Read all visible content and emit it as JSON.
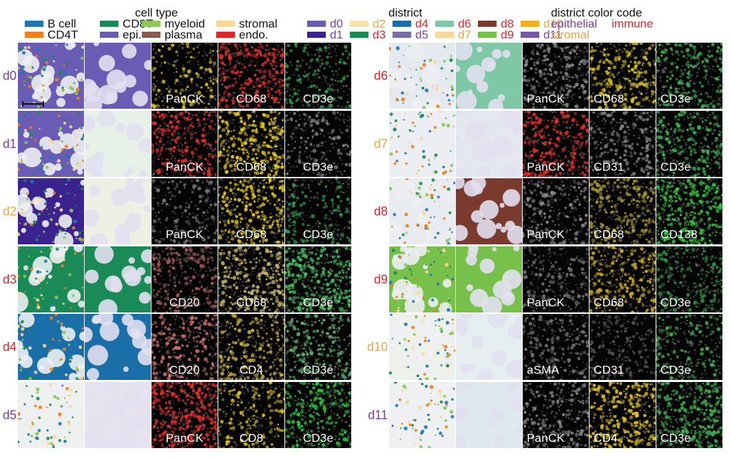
{
  "legends": {
    "cell_type": {
      "title": "cell type",
      "items": [
        {
          "label": "B cell",
          "color": "#1f77b4"
        },
        {
          "label": "CD8T",
          "color": "#1a8a57"
        },
        {
          "label": "myeloid",
          "color": "#8cc75a"
        },
        {
          "label": "stromal",
          "color": "#f6d89a"
        },
        {
          "label": "CD4T",
          "color": "#f07f1b"
        },
        {
          "label": "epi.",
          "color": "#6a5bb5"
        },
        {
          "label": "plasma",
          "color": "#8b5a4a"
        },
        {
          "label": "endo.",
          "color": "#e0252b"
        }
      ]
    },
    "district": {
      "title": "district",
      "items": [
        {
          "label": "d0",
          "color": "#6a5bb5",
          "text_color": "#7a3fa0"
        },
        {
          "label": "d2",
          "color": "#f6e1ac",
          "text_color": "#f0a640"
        },
        {
          "label": "d4",
          "color": "#1a6fa8",
          "text_color": "#e0252b"
        },
        {
          "label": "d6",
          "color": "#7ec8a6",
          "text_color": "#e0252b"
        },
        {
          "label": "d8",
          "color": "#7b3a2e",
          "text_color": "#e0252b"
        },
        {
          "label": "d10",
          "color": "#f0b020",
          "text_color": "#f0a640"
        },
        {
          "label": "d1",
          "color": "#3b238f",
          "text_color": "#7a3fa0"
        },
        {
          "label": "d3",
          "color": "#1a8a57",
          "text_color": "#e0252b"
        },
        {
          "label": "d5",
          "color": "#7a6bab",
          "text_color": "#7a3fa0"
        },
        {
          "label": "d7",
          "color": "#f6d89a",
          "text_color": "#f0a640"
        },
        {
          "label": "d9",
          "color": "#77c04a",
          "text_color": "#e0252b"
        },
        {
          "label": "d11",
          "color": "#7a58a8",
          "text_color": "#7a3fa0"
        }
      ]
    },
    "district_color_code": {
      "title": "district color code",
      "items": [
        {
          "label": "epithelial",
          "color": "#7a3fa0"
        },
        {
          "label": "immune",
          "color": "#e0252b"
        },
        {
          "label": "stromal",
          "color": "#f0a640"
        }
      ]
    }
  },
  "left_panel": {
    "rows": [
      {
        "label": "d0",
        "label_color": "#7a3fa0",
        "celltype_bg": "#6a5bb5",
        "district_bg": "#6a5bb5",
        "markers": [
          {
            "name": "PanCK",
            "tint": "#d8c020",
            "intensity": 0.25
          },
          {
            "name": "CD68",
            "tint": "#e0302b",
            "intensity": 0.7
          },
          {
            "name": "CD3e",
            "tint": "#2fa050",
            "intensity": 0.25
          }
        ]
      },
      {
        "label": "d1",
        "label_color": "#7a3fa0",
        "celltype_bg": "#6a5bb5",
        "district_bg": "#e8f1e8",
        "markers": [
          {
            "name": "PanCK",
            "tint": "#e0302b",
            "intensity": 0.55
          },
          {
            "name": "CD68",
            "tint": "#e6c820",
            "intensity": 0.7
          },
          {
            "name": "CD3e",
            "tint": "#888888",
            "intensity": 0.2
          }
        ]
      },
      {
        "label": "d2",
        "label_color": "#f0a640",
        "celltype_bg": "#3b238f",
        "district_bg": "#eef0e4",
        "markers": [
          {
            "name": "PanCK",
            "tint": "#777777",
            "intensity": 0.15
          },
          {
            "name": "CD68",
            "tint": "#e6c820",
            "intensity": 0.6
          },
          {
            "name": "CD3e",
            "tint": "#2fa050",
            "intensity": 0.25
          }
        ]
      },
      {
        "label": "d3",
        "label_color": "#e0252b",
        "celltype_bg": "#1a8a57",
        "district_bg": "#1a8a57",
        "markers": [
          {
            "name": "CD20",
            "tint": "#b06060",
            "intensity": 0.4
          },
          {
            "name": "CD68",
            "tint": "#c8b868",
            "intensity": 0.7
          },
          {
            "name": "CD3e",
            "tint": "#48c060",
            "intensity": 0.8
          }
        ]
      },
      {
        "label": "d4",
        "label_color": "#e0252b",
        "celltype_bg": "#1a6fa8",
        "district_bg": "#1a6fa8",
        "markers": [
          {
            "name": "CD20",
            "tint": "#d07070",
            "intensity": 0.45
          },
          {
            "name": "CD4",
            "tint": "#c8b040",
            "intensity": 0.5
          },
          {
            "name": "CD3e",
            "tint": "#60b070",
            "intensity": 0.5
          }
        ]
      },
      {
        "label": "d5",
        "label_color": "#7a3fa0",
        "celltype_bg": "#eef0ee",
        "district_bg": "#e6e2f0",
        "markers": [
          {
            "name": "PanCK",
            "tint": "#e8302b",
            "intensity": 0.8
          },
          {
            "name": "CD8",
            "tint": "#d8c020",
            "intensity": 0.35
          },
          {
            "name": "CD3e",
            "tint": "#30c040",
            "intensity": 0.55
          }
        ]
      }
    ]
  },
  "right_panel": {
    "rows": [
      {
        "label": "d6",
        "label_color": "#e0252b",
        "celltype_bg": "#e4eaf0",
        "district_bg": "#7ec8a6",
        "markers": [
          {
            "name": "PanCK",
            "tint": "#888888",
            "intensity": 0.45
          },
          {
            "name": "CD68",
            "tint": "#d8c020",
            "intensity": 0.55
          },
          {
            "name": "CD3e",
            "tint": "#40b050",
            "intensity": 0.45
          }
        ]
      },
      {
        "label": "d7",
        "label_color": "#f0a640",
        "celltype_bg": "#eceef4",
        "district_bg": "#e4e6f0",
        "markers": [
          {
            "name": "PanCK",
            "tint": "#e8302b",
            "intensity": 0.6
          },
          {
            "name": "CD31",
            "tint": "#888888",
            "intensity": 0.35
          },
          {
            "name": "CD3e",
            "tint": "#40b050",
            "intensity": 0.5
          }
        ]
      },
      {
        "label": "d8",
        "label_color": "#e0252b",
        "celltype_bg": "#e8ecf0",
        "district_bg": "#7b3a2e",
        "markers": [
          {
            "name": "PanCK",
            "tint": "#888888",
            "intensity": 0.3
          },
          {
            "name": "CD68",
            "tint": "#a89830",
            "intensity": 0.55
          },
          {
            "name": "CD138",
            "tint": "#38c040",
            "intensity": 0.8
          }
        ]
      },
      {
        "label": "d9",
        "label_color": "#e0252b",
        "celltype_bg": "#77c04a",
        "district_bg": "#77c04a",
        "markers": [
          {
            "name": "PanCK",
            "tint": "#777777",
            "intensity": 0.25
          },
          {
            "name": "CD68",
            "tint": "#c8a820",
            "intensity": 0.6
          },
          {
            "name": "CD3e",
            "tint": "#2f9040",
            "intensity": 0.4
          }
        ]
      },
      {
        "label": "d10",
        "label_color": "#f0a640",
        "celltype_bg": "#eef0ec",
        "district_bg": "#e6eef0",
        "markers": [
          {
            "name": "aSMA",
            "tint": "#777777",
            "intensity": 0.25
          },
          {
            "name": "CD31",
            "tint": "#555555",
            "intensity": 0.2
          },
          {
            "name": "CD3e",
            "tint": "#40b050",
            "intensity": 0.3
          }
        ]
      },
      {
        "label": "d11",
        "label_color": "#7a3fa0",
        "celltype_bg": "#eef0f2",
        "district_bg": "#dfe8ee",
        "markers": [
          {
            "name": "PanCK",
            "tint": "#888888",
            "intensity": 0.4
          },
          {
            "name": "CD4",
            "tint": "#e0c020",
            "intensity": 0.75
          },
          {
            "name": "CD3e",
            "tint": "#40b050",
            "intensity": 0.7
          }
        ]
      }
    ]
  }
}
